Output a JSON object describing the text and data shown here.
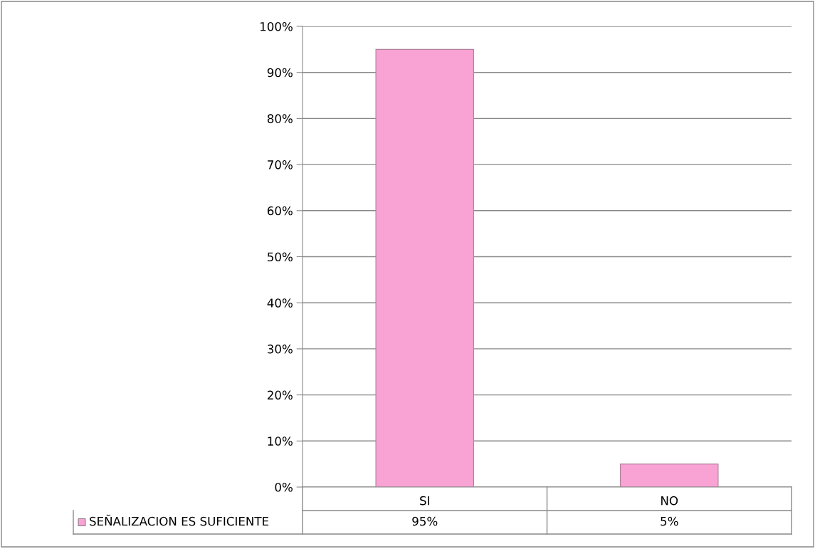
{
  "chart_data": {
    "type": "bar",
    "categories": [
      "SI",
      "NO"
    ],
    "series": [
      {
        "name": "SEÑALIZACION ES SUFICIENTE",
        "color": "#f9a3d4",
        "values": [
          95,
          5
        ],
        "value_labels": [
          "95%",
          "5%"
        ]
      }
    ],
    "ylim": [
      0,
      100
    ],
    "yticks": [
      {
        "value": 0,
        "label": "0%"
      },
      {
        "value": 10,
        "label": "10%"
      },
      {
        "value": 20,
        "label": "20%"
      },
      {
        "value": 30,
        "label": "30%"
      },
      {
        "value": 40,
        "label": "40%"
      },
      {
        "value": 50,
        "label": "50%"
      },
      {
        "value": 60,
        "label": "60%"
      },
      {
        "value": 70,
        "label": "70%"
      },
      {
        "value": 80,
        "label": "80%"
      },
      {
        "value": 90,
        "label": "90%"
      },
      {
        "value": 100,
        "label": "100%"
      }
    ],
    "grid": "y",
    "legend": "bottom left"
  }
}
